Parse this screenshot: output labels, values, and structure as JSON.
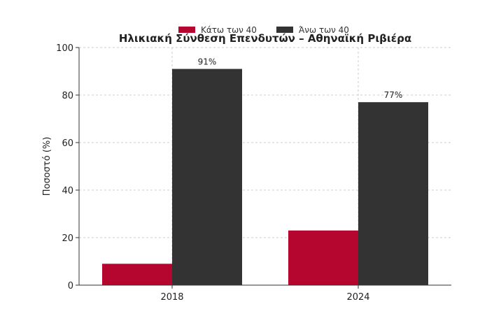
{
  "chart_data": {
    "type": "bar",
    "title": "Ηλικιακή Σύνθεση Επενδυτών – Αθηναϊκή Ριβιέρα",
    "xlabel": "",
    "ylabel": "Ποσοστό (%)",
    "categories": [
      "2018",
      "2024"
    ],
    "series": [
      {
        "name": "Κάτω των 40",
        "values": [
          9,
          23
        ],
        "color": "#b5062f",
        "labels": [
          "",
          ""
        ]
      },
      {
        "name": "Άνω των 40",
        "values": [
          91,
          77
        ],
        "color": "#333333",
        "labels": [
          "91%",
          "77%"
        ]
      }
    ],
    "ylim": [
      0,
      100
    ],
    "yticks": [
      "0",
      "20",
      "40",
      "60",
      "80",
      "100"
    ],
    "grid": true,
    "legend_position": "top-center"
  }
}
